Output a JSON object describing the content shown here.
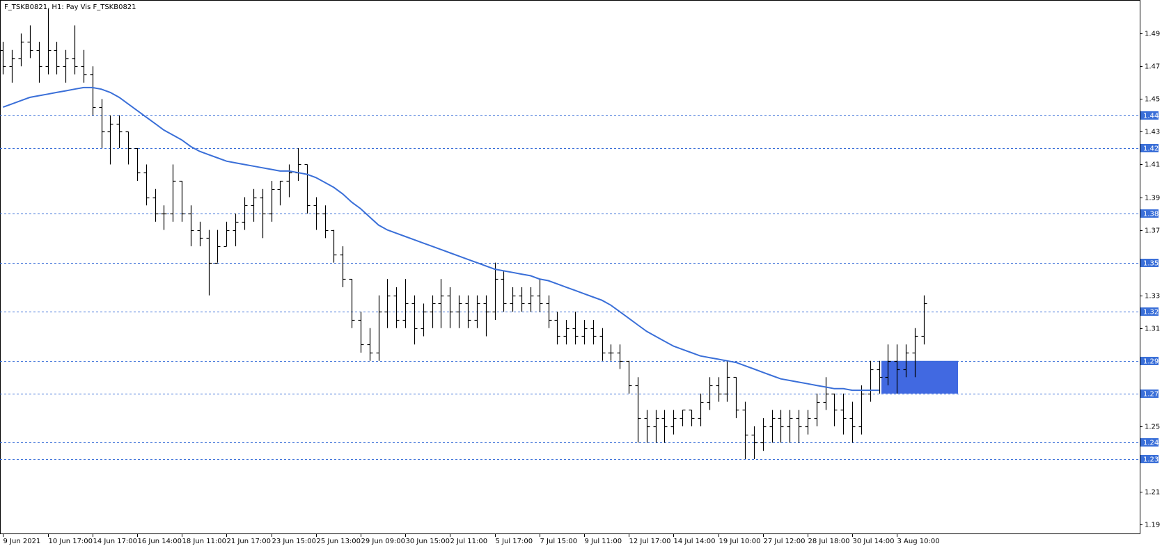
{
  "chart_data": {
    "type": "ohlc",
    "title": "F_TSKB0821, H1:  Pay Vis F_TSKB0821",
    "ylim": [
      1.1845,
      1.5105
    ],
    "yticks": [
      1.49,
      1.47,
      1.45,
      1.43,
      1.41,
      1.39,
      1.37,
      1.33,
      1.31,
      1.25,
      1.21,
      1.19
    ],
    "categories": [
      "9 Jun 2021",
      null,
      null,
      null,
      null,
      "10 Jun 17:00",
      null,
      null,
      null,
      null,
      "14 Jun 17:00",
      null,
      null,
      null,
      null,
      "16 Jun 14:00",
      null,
      null,
      null,
      null,
      "18 Jun 11:00",
      null,
      null,
      null,
      null,
      "21 Jun 17:00",
      null,
      null,
      null,
      null,
      "23 Jun 15:00",
      null,
      null,
      null,
      null,
      "25 Jun 13:00",
      null,
      null,
      null,
      null,
      "29 Jun 09:00",
      null,
      null,
      null,
      null,
      "30 Jun 15:00",
      null,
      null,
      null,
      null,
      "2 Jul 11:00",
      null,
      null,
      null,
      null,
      "5 Jul 17:00",
      null,
      null,
      null,
      null,
      "7 Jul 15:00",
      null,
      null,
      null,
      null,
      "9 Jul 11:00",
      null,
      null,
      null,
      null,
      "12 Jul 17:00",
      null,
      null,
      null,
      null,
      "14 Jul 14:00",
      null,
      null,
      null,
      null,
      "19 Jul 10:00",
      null,
      null,
      null,
      null,
      "27 Jul 12:00",
      null,
      null,
      null,
      null,
      "28 Jul 18:00",
      null,
      null,
      null,
      null,
      "30 Jul 14:00",
      null,
      null,
      null,
      null,
      "3 Aug 10:00",
      null,
      null,
      null
    ],
    "open": [
      1.48,
      1.47,
      1.475,
      1.485,
      1.48,
      1.47,
      1.48,
      1.47,
      1.475,
      1.47,
      1.465,
      1.445,
      1.43,
      1.435,
      1.43,
      1.42,
      1.405,
      1.39,
      1.38,
      1.38,
      1.4,
      1.38,
      1.37,
      1.365,
      1.35,
      1.36,
      1.37,
      1.375,
      1.385,
      1.39,
      1.38,
      1.395,
      1.4,
      1.405,
      1.41,
      1.385,
      1.38,
      1.37,
      1.355,
      1.34,
      1.315,
      1.3,
      1.295,
      1.32,
      1.33,
      1.315,
      1.325,
      1.31,
      1.32,
      1.325,
      1.33,
      1.32,
      1.325,
      1.315,
      1.325,
      1.32,
      1.34,
      1.325,
      1.33,
      1.325,
      1.33,
      1.325,
      1.315,
      1.305,
      1.31,
      1.305,
      1.31,
      1.305,
      1.295,
      1.295,
      1.29,
      1.275,
      1.255,
      1.25,
      1.255,
      1.25,
      1.255,
      1.26,
      1.255,
      1.265,
      1.275,
      1.27,
      1.28,
      1.26,
      1.245,
      1.24,
      1.25,
      1.255,
      1.25,
      1.255,
      1.25,
      1.255,
      1.265,
      1.27,
      1.26,
      1.255,
      1.25,
      1.27,
      1.285,
      1.28,
      1.29,
      1.285,
      1.295,
      1.305
    ],
    "high": [
      1.485,
      1.48,
      1.49,
      1.495,
      1.485,
      1.505,
      1.485,
      1.48,
      1.495,
      1.48,
      1.47,
      1.45,
      1.44,
      1.44,
      1.43,
      1.42,
      1.41,
      1.395,
      1.385,
      1.41,
      1.4,
      1.385,
      1.375,
      1.37,
      1.37,
      1.375,
      1.38,
      1.39,
      1.395,
      1.395,
      1.4,
      1.4,
      1.41,
      1.42,
      1.41,
      1.39,
      1.385,
      1.37,
      1.36,
      1.34,
      1.32,
      1.31,
      1.33,
      1.34,
      1.335,
      1.34,
      1.33,
      1.325,
      1.33,
      1.34,
      1.335,
      1.33,
      1.33,
      1.33,
      1.33,
      1.35,
      1.345,
      1.335,
      1.335,
      1.335,
      1.34,
      1.33,
      1.32,
      1.315,
      1.32,
      1.315,
      1.315,
      1.31,
      1.3,
      1.3,
      1.29,
      1.28,
      1.26,
      1.26,
      1.26,
      1.26,
      1.26,
      1.26,
      1.27,
      1.28,
      1.28,
      1.29,
      1.28,
      1.265,
      1.25,
      1.255,
      1.26,
      1.26,
      1.26,
      1.26,
      1.26,
      1.27,
      1.28,
      1.27,
      1.27,
      1.265,
      1.275,
      1.29,
      1.29,
      1.3,
      1.3,
      1.3,
      1.31,
      1.33
    ],
    "low": [
      1.465,
      1.46,
      1.47,
      1.475,
      1.46,
      1.465,
      1.465,
      1.46,
      1.465,
      1.46,
      1.44,
      1.42,
      1.41,
      1.42,
      1.41,
      1.4,
      1.385,
      1.375,
      1.37,
      1.375,
      1.375,
      1.36,
      1.36,
      1.33,
      1.35,
      1.36,
      1.36,
      1.37,
      1.375,
      1.365,
      1.375,
      1.385,
      1.39,
      1.4,
      1.38,
      1.37,
      1.365,
      1.35,
      1.335,
      1.31,
      1.295,
      1.29,
      1.29,
      1.31,
      1.31,
      1.31,
      1.3,
      1.305,
      1.31,
      1.31,
      1.31,
      1.31,
      1.31,
      1.31,
      1.305,
      1.315,
      1.32,
      1.32,
      1.32,
      1.32,
      1.32,
      1.31,
      1.3,
      1.3,
      1.3,
      1.3,
      1.3,
      1.29,
      1.29,
      1.285,
      1.27,
      1.24,
      1.24,
      1.24,
      1.24,
      1.245,
      1.25,
      1.25,
      1.25,
      1.26,
      1.265,
      1.265,
      1.255,
      1.23,
      1.23,
      1.235,
      1.24,
      1.24,
      1.24,
      1.24,
      1.245,
      1.25,
      1.26,
      1.25,
      1.245,
      1.24,
      1.245,
      1.265,
      1.27,
      1.275,
      1.27,
      1.28,
      1.28,
      1.3
    ],
    "close": [
      1.47,
      1.475,
      1.485,
      1.48,
      1.47,
      1.48,
      1.47,
      1.475,
      1.47,
      1.465,
      1.445,
      1.43,
      1.435,
      1.43,
      1.42,
      1.405,
      1.39,
      1.38,
      1.38,
      1.4,
      1.38,
      1.37,
      1.365,
      1.35,
      1.36,
      1.37,
      1.375,
      1.385,
      1.39,
      1.38,
      1.395,
      1.4,
      1.405,
      1.41,
      1.385,
      1.38,
      1.37,
      1.355,
      1.34,
      1.315,
      1.3,
      1.295,
      1.32,
      1.33,
      1.315,
      1.325,
      1.31,
      1.32,
      1.325,
      1.33,
      1.32,
      1.325,
      1.315,
      1.325,
      1.32,
      1.34,
      1.325,
      1.33,
      1.325,
      1.33,
      1.325,
      1.315,
      1.305,
      1.31,
      1.305,
      1.31,
      1.305,
      1.295,
      1.295,
      1.29,
      1.275,
      1.255,
      1.25,
      1.255,
      1.25,
      1.255,
      1.26,
      1.255,
      1.265,
      1.275,
      1.27,
      1.28,
      1.26,
      1.245,
      1.24,
      1.25,
      1.255,
      1.25,
      1.255,
      1.25,
      1.255,
      1.265,
      1.27,
      1.26,
      1.255,
      1.25,
      1.27,
      1.285,
      1.28,
      1.29,
      1.285,
      1.295,
      1.305,
      1.325
    ],
    "bar_color": "#000000",
    "ma": {
      "color": "#3a6fd8",
      "values": [
        1.445,
        1.447,
        1.449,
        1.451,
        1.452,
        1.453,
        1.454,
        1.455,
        1.456,
        1.457,
        1.457,
        1.456,
        1.454,
        1.451,
        1.447,
        1.443,
        1.439,
        1.435,
        1.431,
        1.428,
        1.425,
        1.421,
        1.418,
        1.416,
        1.414,
        1.412,
        1.411,
        1.41,
        1.409,
        1.408,
        1.407,
        1.406,
        1.406,
        1.405,
        1.404,
        1.402,
        1.399,
        1.396,
        1.392,
        1.387,
        1.383,
        1.378,
        1.373,
        1.37,
        1.368,
        1.366,
        1.364,
        1.362,
        1.36,
        1.358,
        1.356,
        1.354,
        1.352,
        1.35,
        1.348,
        1.346,
        1.345,
        1.344,
        1.343,
        1.342,
        1.34,
        1.339,
        1.337,
        1.335,
        1.333,
        1.331,
        1.329,
        1.327,
        1.324,
        1.32,
        1.316,
        1.312,
        1.308,
        1.305,
        1.302,
        1.299,
        1.297,
        1.295,
        1.293,
        1.292,
        1.291,
        1.29,
        1.289,
        1.287,
        1.285,
        1.283,
        1.281,
        1.279,
        1.278,
        1.277,
        1.276,
        1.275,
        1.274,
        1.273,
        1.273,
        1.272,
        1.272,
        1.272,
        1.272,
        null,
        null,
        null,
        null,
        null
      ]
    },
    "levels": [
      1.44,
      1.42,
      1.38,
      1.35,
      1.32,
      1.29,
      1.27,
      1.24,
      1.23
    ],
    "level_color": "#3a6fd8",
    "zone": {
      "from": 1.27,
      "to": 1.29,
      "color": "#4169e1"
    }
  }
}
